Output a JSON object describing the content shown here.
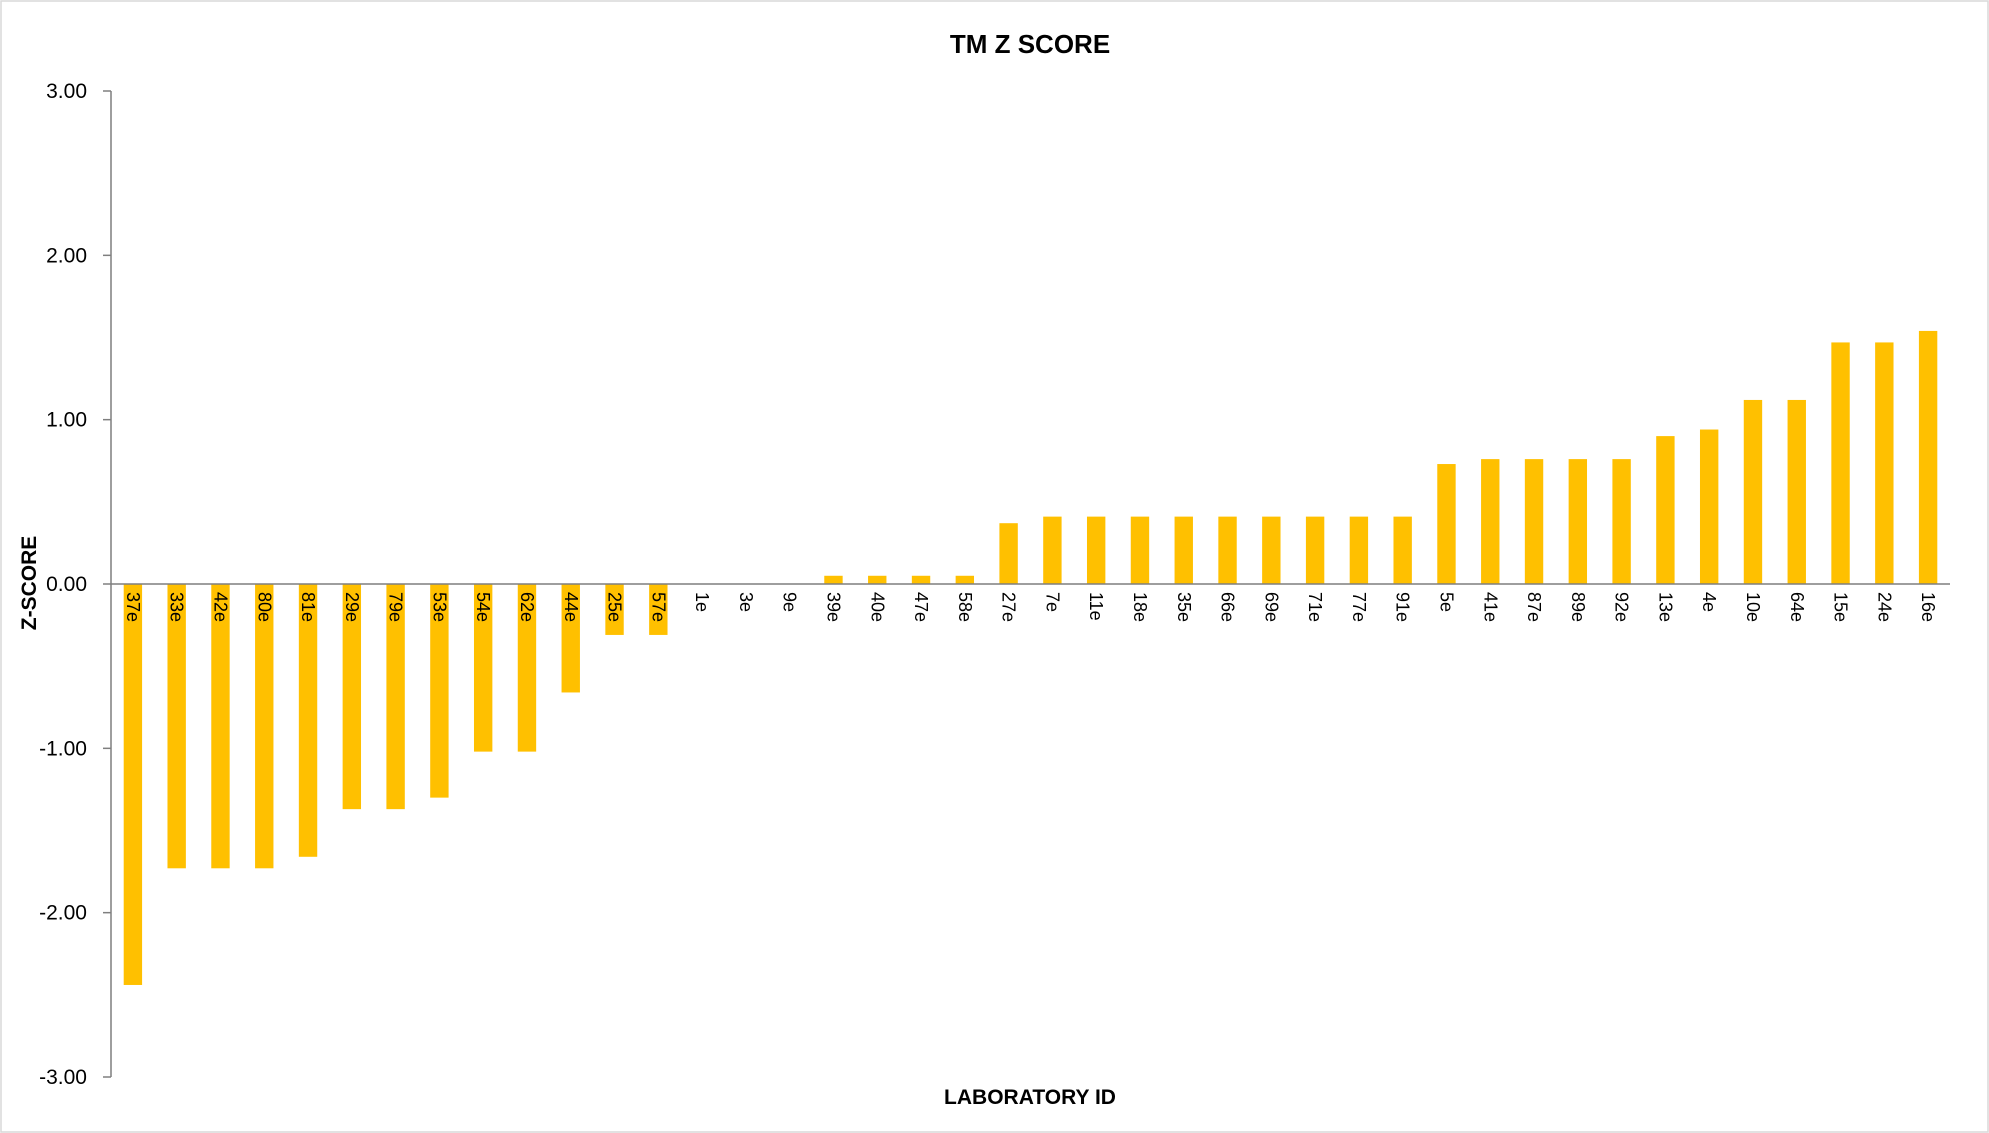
{
  "chart_data": {
    "type": "bar",
    "title": "TM Z SCORE",
    "xlabel": "LABORATORY ID",
    "ylabel": "Z-SCORE",
    "ylim": [
      -3,
      3
    ],
    "yticks": [
      "3.00",
      "2.00",
      "1.00",
      "0.00",
      "-1.00",
      "-2.00",
      "-3.00"
    ],
    "grid": false,
    "legend": "none",
    "bar_color": "#FFC000",
    "categories": [
      "37e",
      "33e",
      "42e",
      "80e",
      "81e",
      "29e",
      "79e",
      "53e",
      "54e",
      "62e",
      "44e",
      "25e",
      "57e",
      "1e",
      "3e",
      "9e",
      "39e",
      "40e",
      "47e",
      "58e",
      "27e",
      "7e",
      "11e",
      "18e",
      "35e",
      "66e",
      "69e",
      "71e",
      "77e",
      "91e",
      "5e",
      "41e",
      "87e",
      "89e",
      "92e",
      "13e",
      "4e",
      "10e",
      "64e",
      "15e",
      "24e",
      "16e"
    ],
    "values": [
      -2.44,
      -1.73,
      -1.73,
      -1.73,
      -1.66,
      -1.37,
      -1.37,
      -1.3,
      -1.02,
      -1.02,
      -0.66,
      -0.31,
      -0.31,
      0.0,
      0.0,
      0.0,
      0.05,
      0.05,
      0.05,
      0.05,
      0.37,
      0.41,
      0.41,
      0.41,
      0.41,
      0.41,
      0.41,
      0.41,
      0.41,
      0.41,
      0.73,
      0.76,
      0.76,
      0.76,
      0.76,
      0.9,
      0.94,
      1.12,
      1.12,
      1.47,
      1.47,
      1.54
    ]
  }
}
